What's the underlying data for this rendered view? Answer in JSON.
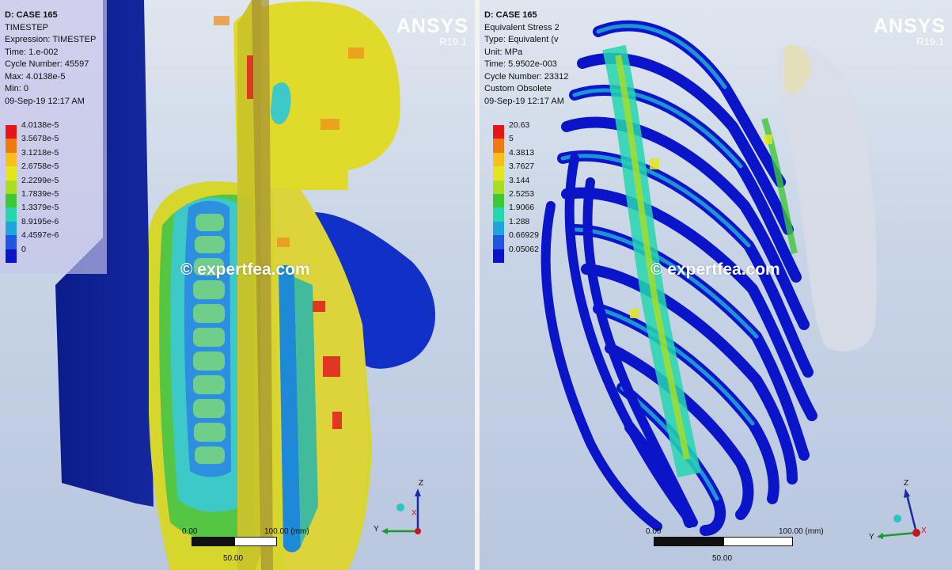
{
  "left": {
    "info": {
      "title": "D: CASE 165",
      "line1": "TIMESTEP",
      "line2": "Expression: TIMESTEP",
      "line3": "Time: 1.e-002",
      "line4": "Cycle Number: 45597",
      "line5": "Max: 4.0138e-5",
      "line6": "Min: 0",
      "line7": "09-Sep-19 12:17 AM"
    },
    "legend": [
      {
        "label": "4.0138e-5",
        "color": "#e8141c"
      },
      {
        "label": "3.5678e-5",
        "color": "#f07a12"
      },
      {
        "label": "3.1218e-5",
        "color": "#f6c21a"
      },
      {
        "label": "2.6758e-5",
        "color": "#e3e51f"
      },
      {
        "label": "2.2299e-5",
        "color": "#a9df22"
      },
      {
        "label": "1.7839e-5",
        "color": "#3cc837"
      },
      {
        "label": "1.3379e-5",
        "color": "#26d6b0"
      },
      {
        "label": "8.9195e-6",
        "color": "#1ea6dc"
      },
      {
        "label": "4.4597e-6",
        "color": "#2256dc"
      },
      {
        "label": "0",
        "color": "#0a14c8"
      }
    ],
    "brand": {
      "name": "ANSYS",
      "version": "R19.1"
    },
    "watermark": "© expertfea.com",
    "scale": {
      "start": "0.00",
      "end": "100.00 (mm)",
      "mid": "50.00"
    },
    "axes": {
      "z": "Z",
      "y": "Y",
      "x": "X"
    }
  },
  "right": {
    "info": {
      "title": "D: CASE 165",
      "line1": "Equivalent Stress 2",
      "line2": "Type: Equivalent (v",
      "line3": "Unit: MPa",
      "line4": "Time: 5.9502e-003",
      "line5": "Cycle Number: 23312",
      "line6": "Custom Obsolete",
      "line7": "09-Sep-19 12:17 AM"
    },
    "legend": [
      {
        "label": "20.63",
        "color": "#e8141c"
      },
      {
        "label": "5",
        "color": "#f07a12"
      },
      {
        "label": "4.3813",
        "color": "#f6c21a"
      },
      {
        "label": "3.7627",
        "color": "#e3e51f"
      },
      {
        "label": "3.144",
        "color": "#a9df22"
      },
      {
        "label": "2.5253",
        "color": "#3cc837"
      },
      {
        "label": "1.9066",
        "color": "#26d6b0"
      },
      {
        "label": "1.288",
        "color": "#1ea6dc"
      },
      {
        "label": "0.66929",
        "color": "#2256dc"
      },
      {
        "label": "0.05062",
        "color": "#0a14c8"
      }
    ],
    "brand": {
      "name": "ANSYS",
      "version": "R19.1"
    },
    "watermark": "© expertfea.com",
    "scale": {
      "start": "0.00",
      "end": "100.00 (mm)",
      "mid": "50.00"
    },
    "axes": {
      "z": "Z",
      "y": "Y",
      "x": "X"
    }
  }
}
